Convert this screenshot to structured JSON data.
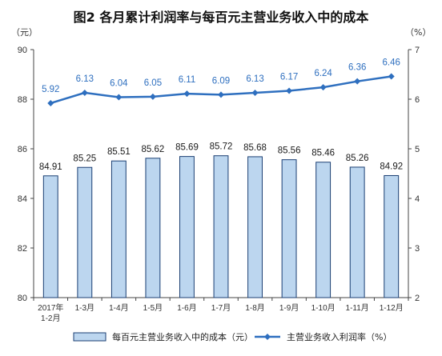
{
  "chart_data": {
    "type": "bar+line",
    "title": "图2  各月累计利润率与每百元主营业务收入中的成本",
    "left_unit": "（元）",
    "right_unit": "（%）",
    "categories": [
      "2017年|1-2月",
      "1-3月",
      "1-4月",
      "1-5月",
      "1-6月",
      "1-7月",
      "1-8月",
      "1-9月",
      "1-10月",
      "1-11月",
      "1-12月"
    ],
    "series": [
      {
        "name": "每百元主营业务收入中的成本（元）",
        "type": "bar",
        "axis": "left",
        "values": [
          84.91,
          85.25,
          85.51,
          85.62,
          85.69,
          85.72,
          85.68,
          85.56,
          85.46,
          85.26,
          84.92
        ],
        "labels": [
          "84.91",
          "85.25",
          "85.51",
          "85.62",
          "85.69",
          "85.72",
          "85.68",
          "85.56",
          "85.46",
          "85.26",
          "84.92"
        ]
      },
      {
        "name": "主营业务收入利润率（%）",
        "type": "line",
        "axis": "right",
        "values": [
          5.92,
          6.13,
          6.04,
          6.05,
          6.11,
          6.09,
          6.13,
          6.17,
          6.24,
          6.36,
          6.46
        ],
        "labels": [
          "5.92",
          "6.13",
          "6.04",
          "6.05",
          "6.11",
          "6.09",
          "6.13",
          "6.17",
          "6.24",
          "6.36",
          "6.46"
        ]
      }
    ],
    "ylim_left": [
      80,
      90
    ],
    "yticks_left": [
      "80",
      "82",
      "84",
      "86",
      "88",
      "90"
    ],
    "ylim_right": [
      2,
      7
    ],
    "yticks_right": [
      "2",
      "3",
      "4",
      "5",
      "6",
      "7"
    ],
    "grid": false,
    "legend_position": "bottom",
    "colors": {
      "bar_fill": "#bcd6ef",
      "bar_stroke": "#1b3f73",
      "line": "#2e6fbf",
      "axis": "#444444"
    }
  }
}
